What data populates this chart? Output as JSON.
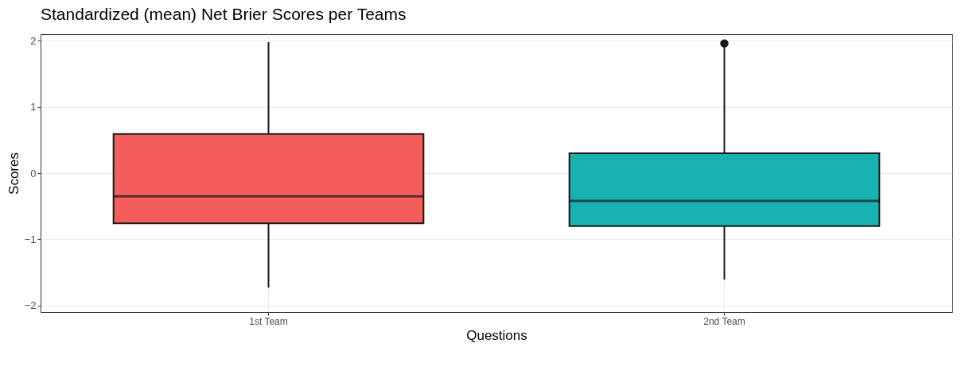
{
  "chart_data": {
    "type": "box",
    "title": "Standardized (mean) Net Brier Scores per Teams",
    "xlabel": "Questions",
    "ylabel": "Scores",
    "categories": [
      "1st Team",
      "2nd Team"
    ],
    "colors": [
      "#f35e5a",
      "#17b3b3"
    ],
    "boxes": [
      {
        "low": -1.73,
        "q1": -0.76,
        "median": -0.35,
        "q3": 0.59,
        "high": 1.98
      },
      {
        "low": -1.61,
        "q1": -0.8,
        "median": -0.42,
        "q3": 0.3,
        "high": 1.94,
        "outliers": [
          1.96
        ]
      }
    ],
    "ylim": [
      -2.1,
      2.1
    ],
    "yticks": [
      -2,
      -1,
      0,
      1,
      2
    ],
    "grid": true
  }
}
